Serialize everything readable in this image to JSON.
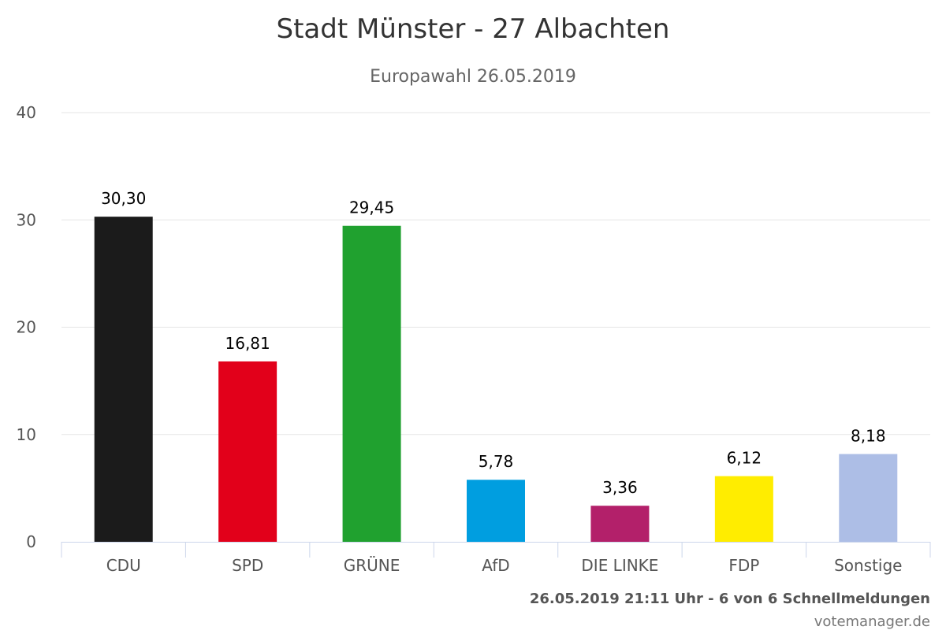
{
  "chart_data": {
    "type": "bar",
    "title": "Stadt Münster - 27 Albachten",
    "subtitle": "Europawahl 26.05.2019",
    "categories": [
      "CDU",
      "SPD",
      "GRÜNE",
      "AfD",
      "DIE LINKE",
      "FDP",
      "Sonstige"
    ],
    "values": [
      30.3,
      16.81,
      29.45,
      5.78,
      3.36,
      6.12,
      8.18
    ],
    "value_labels": [
      "30,30",
      "16,81",
      "29,45",
      "5,78",
      "3,36",
      "6,12",
      "8,18"
    ],
    "colors": [
      "#1b1b1b",
      "#e2001a",
      "#20a12f",
      "#009ee0",
      "#b3206a",
      "#ffed00",
      "#adbee6"
    ],
    "ylim": [
      0,
      40
    ],
    "yticks": [
      "0",
      "10",
      "20",
      "30",
      "40"
    ],
    "grid": true,
    "xlabel": "",
    "ylabel": ""
  },
  "footer": {
    "status": "26.05.2019 21:11 Uhr - 6 von 6 Schnellmeldungen",
    "credit": "votemanager.de"
  }
}
